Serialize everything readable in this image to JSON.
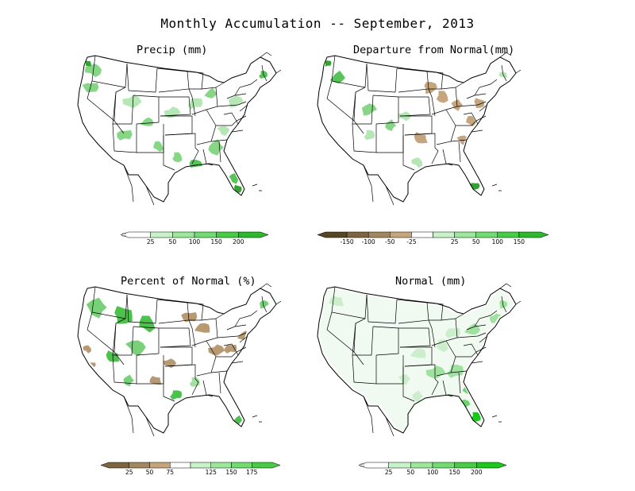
{
  "title": "Monthly Accumulation -- September, 2013",
  "panels": [
    {
      "id": "precip",
      "title": "Precip (mm)",
      "palette": {
        "dry": "#e9f6e9",
        "low": "#b5e7b5",
        "mid": "#86d686",
        "high": "#57c457",
        "max": "#2fa52f"
      },
      "colorbar": {
        "type": "sequential",
        "colors": [
          "#ffffff",
          "#c9f2c9",
          "#9de79d",
          "#72db72",
          "#48cc48",
          "#2db82d"
        ],
        "labels": [
          "25",
          "50",
          "100",
          "150",
          "200"
        ]
      }
    },
    {
      "id": "departure",
      "title": "Departure from Normal(mm)",
      "palette": {
        "dry": "#c4a57e",
        "low": "#b5e7b5",
        "mid": "#86d686",
        "high": "#57c457",
        "max": "#2fa52f"
      },
      "colorbar": {
        "type": "diverging",
        "colors": [
          "#564623",
          "#7d6541",
          "#a1875f",
          "#c4a57e",
          "#ffffff",
          "#c9f2c9",
          "#9de79d",
          "#72db72",
          "#48cc48",
          "#2db82d"
        ],
        "labels": [
          "-150",
          "-100",
          "-50",
          "-25",
          "25",
          "50",
          "100",
          "150"
        ]
      }
    },
    {
      "id": "percent",
      "title": "Percent of Normal (%)",
      "palette": {
        "dry": "#b79a72",
        "low": "#a3dfa3",
        "mid": "#78d078",
        "high": "#4cc24c",
        "max": "#34aa34"
      },
      "colorbar": {
        "type": "diverging",
        "colors": [
          "#7d6541",
          "#a1875f",
          "#c4a57e",
          "#ffffff",
          "#c9f2c9",
          "#9de79d",
          "#72db72",
          "#48cc48"
        ],
        "labels": [
          "25",
          "50",
          "75",
          "125",
          "150",
          "175"
        ]
      }
    },
    {
      "id": "normal",
      "title": "Normal (mm)",
      "palette": {
        "dry": "#f1faf1",
        "low": "#cdeecd",
        "mid": "#9fe29f",
        "high": "#6fd46f",
        "max": "#19c819"
      },
      "colorbar": {
        "type": "sequential",
        "colors": [
          "#ffffff",
          "#c9f2c9",
          "#9de79d",
          "#72db72",
          "#48cc48",
          "#1bc81b"
        ],
        "labels": [
          "25",
          "50",
          "100",
          "150",
          "200"
        ]
      }
    }
  ]
}
